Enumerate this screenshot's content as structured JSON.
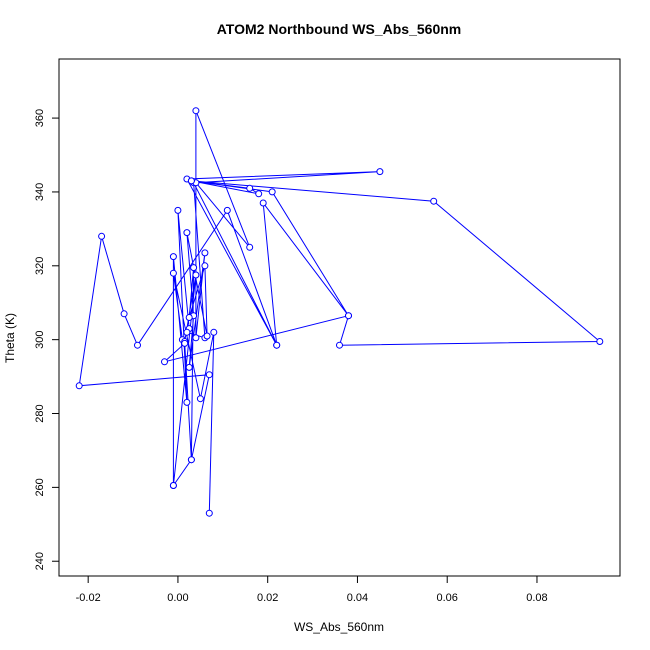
{
  "chart_data": {
    "type": "line",
    "title": "ATOM2 Northbound WS_Abs_560nm",
    "xlabel": "WS_Abs_560nm",
    "ylabel": "Theta (K)",
    "xlim": [
      -0.0265,
      0.0985
    ],
    "ylim": [
      236,
      376
    ],
    "xticks": [
      -0.02,
      0.0,
      0.02,
      0.04,
      0.06,
      0.08
    ],
    "xtick_labels": [
      "-0.02",
      "0.00",
      "0.02",
      "0.04",
      "0.06",
      "0.08"
    ],
    "yticks": [
      240,
      260,
      280,
      300,
      320,
      340,
      360
    ],
    "ytick_labels": [
      "240",
      "260",
      "280",
      "300",
      "320",
      "340",
      "360"
    ],
    "grid": false,
    "series_color": "#0000ff",
    "marker": "open-circle",
    "points": [
      {
        "x": 0.007,
        "y": 253.0
      },
      {
        "x": 0.008,
        "y": 302.0
      },
      {
        "x": 0.005,
        "y": 284.0
      },
      {
        "x": -0.001,
        "y": 318.0
      },
      {
        "x": 0.001,
        "y": 300.0
      },
      {
        "x": 0.0015,
        "y": 299.5
      },
      {
        "x": 0.004,
        "y": 317.5
      },
      {
        "x": -0.001,
        "y": 260.5
      },
      {
        "x": -0.001,
        "y": 322.5
      },
      {
        "x": 0.002,
        "y": 283.0
      },
      {
        "x": 0.0,
        "y": 335.0
      },
      {
        "x": 0.0025,
        "y": 303.0
      },
      {
        "x": 0.002,
        "y": 302.0
      },
      {
        "x": 0.006,
        "y": 300.5
      },
      {
        "x": 0.0035,
        "y": 342.5
      },
      {
        "x": 0.022,
        "y": 298.5
      },
      {
        "x": 0.002,
        "y": 343.5
      },
      {
        "x": 0.045,
        "y": 345.5
      },
      {
        "x": 0.004,
        "y": 342.5
      },
      {
        "x": 0.016,
        "y": 325.0
      },
      {
        "x": 0.004,
        "y": 362.0
      },
      {
        "x": 0.004,
        "y": 300.5
      },
      {
        "x": 0.006,
        "y": 323.5
      },
      {
        "x": 0.0025,
        "y": 292.5
      },
      {
        "x": 0.0035,
        "y": 306.5
      },
      {
        "x": 0.002,
        "y": 329.0
      },
      {
        "x": 0.0065,
        "y": 301.0
      },
      {
        "x": 0.006,
        "y": 320.0
      },
      {
        "x": 0.0025,
        "y": 306.0
      },
      {
        "x": 0.0035,
        "y": 319.5
      },
      {
        "x": 0.003,
        "y": 267.5
      },
      {
        "x": 0.0015,
        "y": 299.0
      },
      {
        "x": -0.003,
        "y": 294.0
      },
      {
        "x": 0.038,
        "y": 306.5
      },
      {
        "x": 0.036,
        "y": 298.5
      },
      {
        "x": 0.094,
        "y": 299.5
      },
      {
        "x": 0.057,
        "y": 337.5
      },
      {
        "x": 0.003,
        "y": 343.0
      },
      {
        "x": 0.018,
        "y": 339.5
      },
      {
        "x": 0.016,
        "y": 341.0
      },
      {
        "x": 0.003,
        "y": 343.0
      },
      {
        "x": 0.021,
        "y": 340.0
      },
      {
        "x": 0.038,
        "y": 306.5
      },
      {
        "x": 0.019,
        "y": 337.0
      },
      {
        "x": 0.022,
        "y": 298.5
      },
      {
        "x": 0.011,
        "y": 335.0
      },
      {
        "x": -0.009,
        "y": 298.5
      },
      {
        "x": -0.012,
        "y": 307.0
      },
      {
        "x": -0.017,
        "y": 328.0
      },
      {
        "x": -0.022,
        "y": 287.5
      },
      {
        "x": 0.007,
        "y": 290.5
      },
      {
        "x": 0.003,
        "y": 267.5
      },
      {
        "x": -0.001,
        "y": 260.5
      }
    ]
  }
}
